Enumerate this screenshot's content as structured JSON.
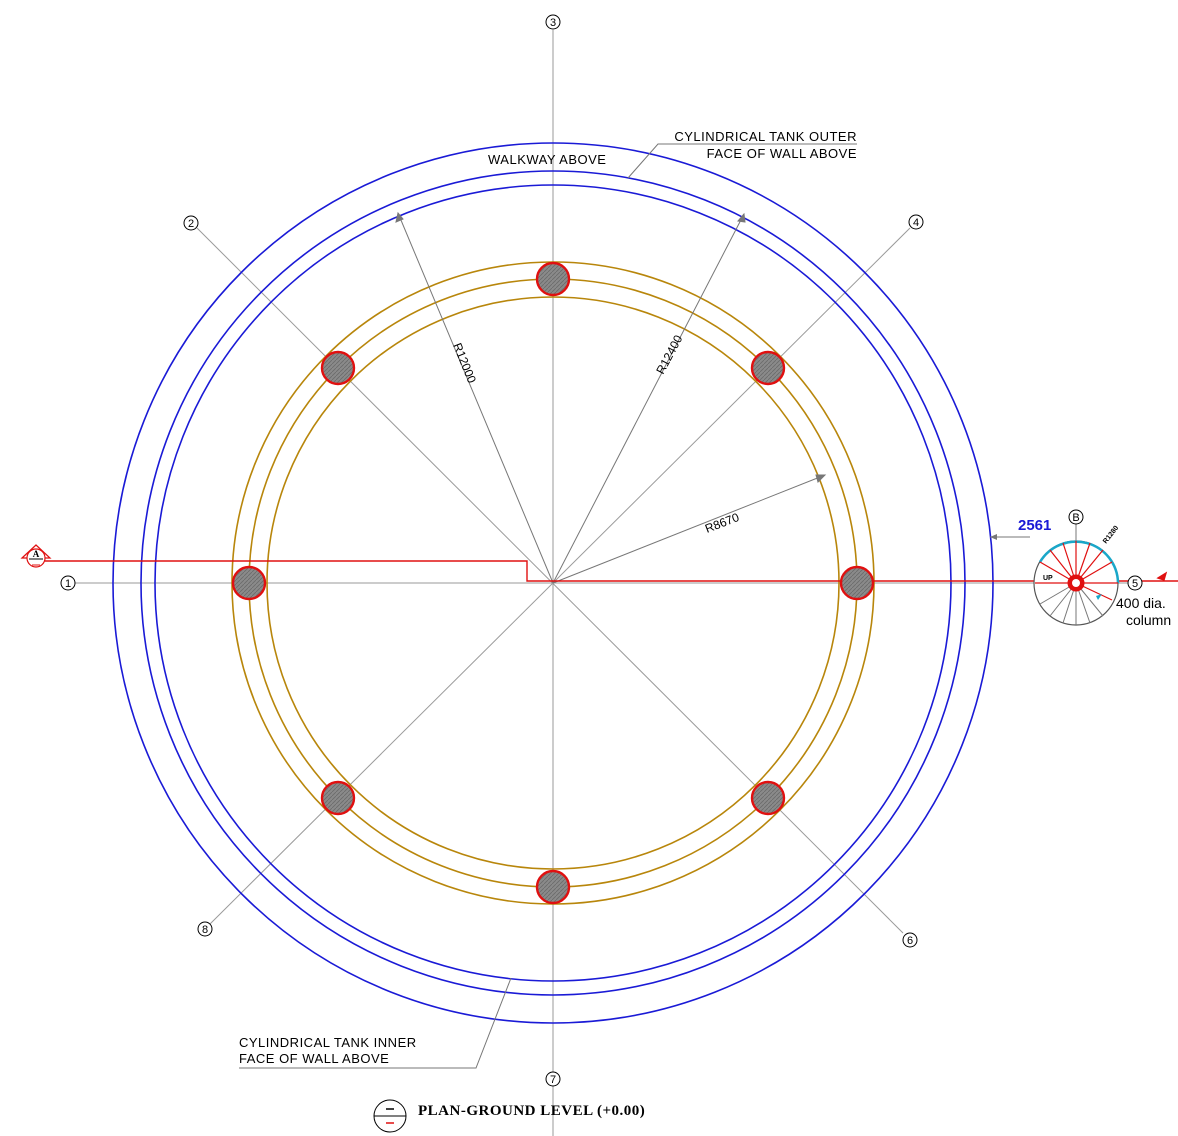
{
  "colors": {
    "walkway_ring": "#1a1ad6",
    "column_ring": "#b8860b",
    "column_outline": "#e01010",
    "column_fill": "#8a8a8a",
    "section_line": "#e01010",
    "grid_line": "#9a9a9a",
    "dimension_blue": "#1a1ad6",
    "stair_cyan": "#1aa7c9"
  },
  "grid_labels": [
    "1",
    "2",
    "3",
    "4",
    "5",
    "6",
    "7",
    "8"
  ],
  "stair_label": "B",
  "section_marker": "A",
  "notes": {
    "walkway": "WALKWAY ABOVE",
    "outer_wall_1": "CYLINDRICAL TANK OUTER",
    "outer_wall_2": "FACE OF WALL ABOVE",
    "inner_wall_1": "CYLINDRICAL TANK INNER",
    "inner_wall_2": "FACE OF WALL ABOVE",
    "column_1": "400 dia.",
    "column_2": "column"
  },
  "dimensions": {
    "r12000": "R12000",
    "r12400": "R12400",
    "r8670": "R8670",
    "stair_offset": "2561",
    "stair_radius": "R1280",
    "stair_up": "UP"
  },
  "title": "PLAN-GROUND LEVEL (+0.00)"
}
